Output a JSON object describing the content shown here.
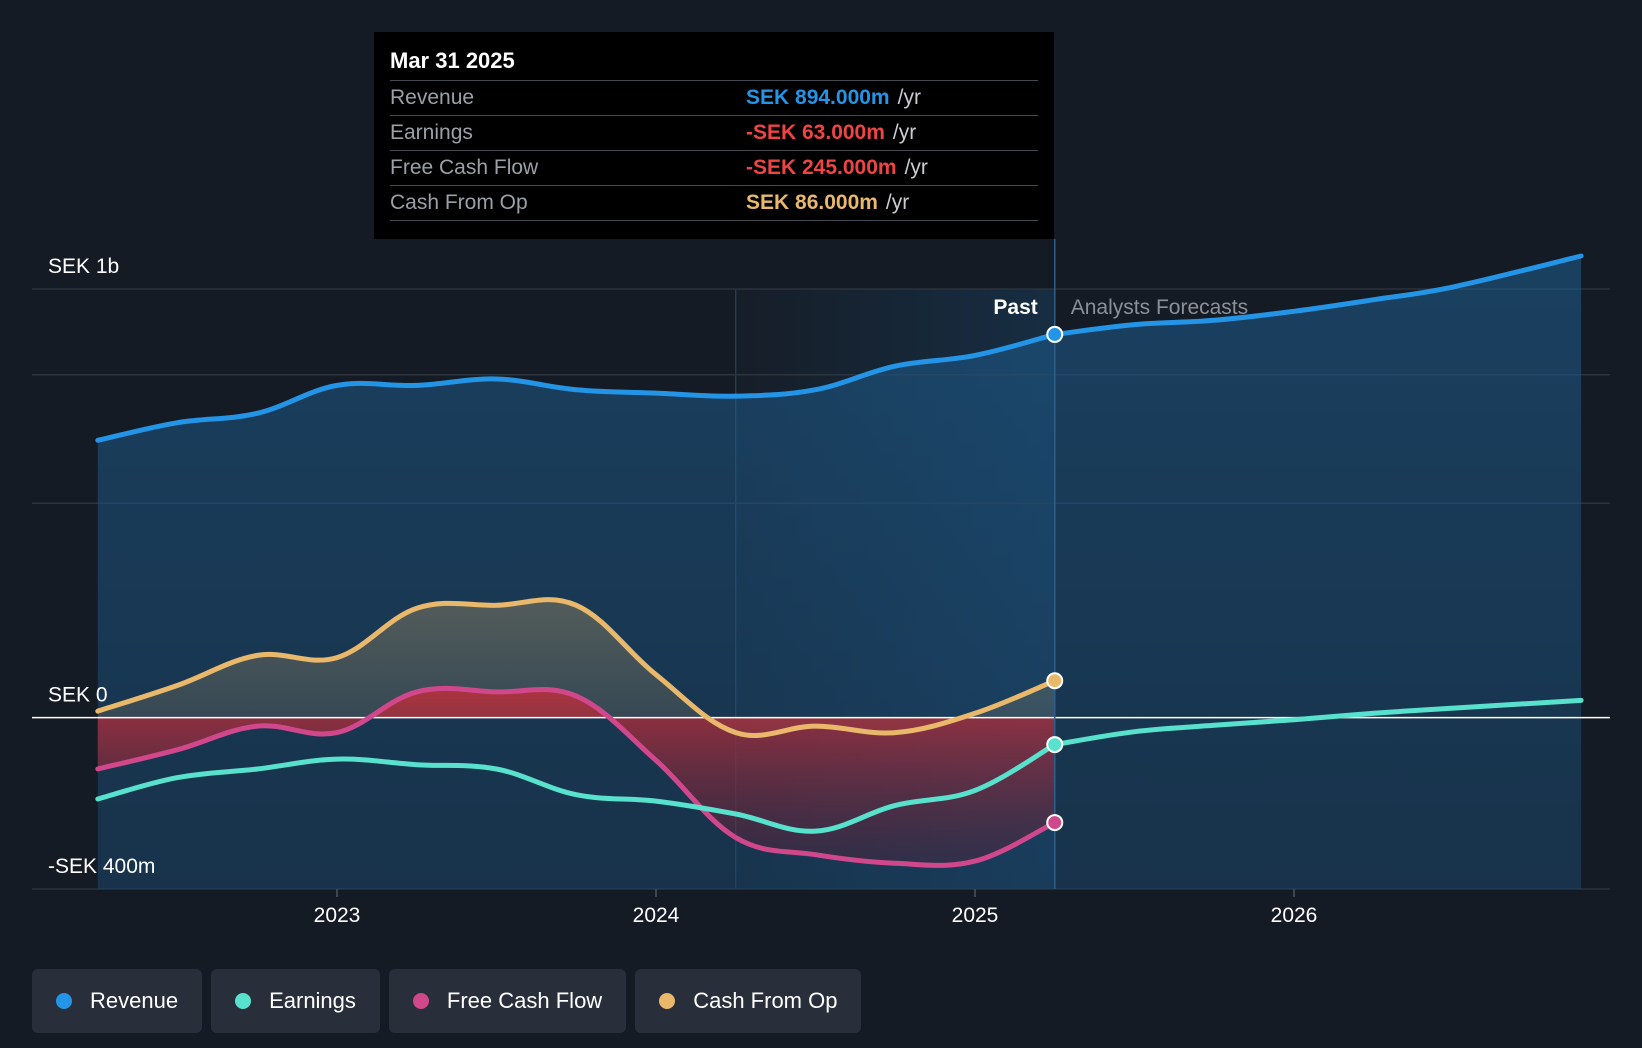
{
  "chart_data": {
    "type": "line",
    "y_axis": {
      "unit": "SEK m",
      "ylim": [
        -400,
        1000
      ],
      "tick_labels": [
        "SEK 1b",
        "SEK 0",
        "-SEK 400m"
      ],
      "tick_values": [
        1000,
        0,
        -400
      ]
    },
    "x_axis": {
      "range": [
        2022.25,
        2026.9
      ],
      "tick_labels": [
        "2023",
        "2024",
        "2025",
        "2026"
      ],
      "tick_values": [
        2023,
        2024,
        2025,
        2026
      ]
    },
    "regions": {
      "past_label": "Past",
      "forecast_label": "Analysts Forecasts",
      "past_end": 2025.25,
      "highlight_start": 2024.25
    },
    "series": [
      {
        "name": "Revenue",
        "key": "revenue",
        "color": "#2394e6",
        "points": [
          [
            2022.25,
            647
          ],
          [
            2022.5,
            688
          ],
          [
            2022.75,
            710
          ],
          [
            2023.0,
            775
          ],
          [
            2023.25,
            775
          ],
          [
            2023.5,
            790
          ],
          [
            2023.75,
            765
          ],
          [
            2024.0,
            757
          ],
          [
            2024.25,
            750
          ],
          [
            2024.5,
            765
          ],
          [
            2024.75,
            820
          ],
          [
            2025.0,
            845
          ],
          [
            2025.25,
            894
          ]
        ],
        "forecast": [
          [
            2025.25,
            894
          ],
          [
            2025.5,
            917
          ],
          [
            2025.75,
            927
          ],
          [
            2026.0,
            948
          ],
          [
            2026.25,
            975
          ],
          [
            2026.5,
            1005
          ],
          [
            2026.9,
            1077
          ]
        ]
      },
      {
        "name": "Earnings",
        "key": "earnings",
        "color": "#58e1cc",
        "points": [
          [
            2022.25,
            -190
          ],
          [
            2022.5,
            -140
          ],
          [
            2022.75,
            -120
          ],
          [
            2023.0,
            -97
          ],
          [
            2023.25,
            -110
          ],
          [
            2023.5,
            -120
          ],
          [
            2023.75,
            -180
          ],
          [
            2024.0,
            -195
          ],
          [
            2024.25,
            -225
          ],
          [
            2024.5,
            -265
          ],
          [
            2024.75,
            -205
          ],
          [
            2025.0,
            -170
          ],
          [
            2025.25,
            -63
          ]
        ],
        "forecast": [
          [
            2025.25,
            -63
          ],
          [
            2025.5,
            -33
          ],
          [
            2025.75,
            -18
          ],
          [
            2026.0,
            -5
          ],
          [
            2026.25,
            10
          ],
          [
            2026.5,
            22
          ],
          [
            2026.9,
            40
          ]
        ]
      },
      {
        "name": "Free Cash Flow",
        "key": "fcf",
        "color": "#d0478c",
        "points": [
          [
            2022.25,
            -120
          ],
          [
            2022.5,
            -75
          ],
          [
            2022.75,
            -20
          ],
          [
            2023.0,
            -35
          ],
          [
            2023.25,
            60
          ],
          [
            2023.5,
            60
          ],
          [
            2023.75,
            50
          ],
          [
            2024.0,
            -100
          ],
          [
            2024.25,
            -280
          ],
          [
            2024.5,
            -320
          ],
          [
            2024.75,
            -340
          ],
          [
            2025.0,
            -335
          ],
          [
            2025.25,
            -245
          ]
        ],
        "forecast": []
      },
      {
        "name": "Cash From Op",
        "key": "cfo",
        "color": "#e9b86a",
        "points": [
          [
            2022.25,
            15
          ],
          [
            2022.5,
            75
          ],
          [
            2022.75,
            145
          ],
          [
            2023.0,
            140
          ],
          [
            2023.25,
            255
          ],
          [
            2023.5,
            262
          ],
          [
            2023.75,
            262
          ],
          [
            2024.0,
            100
          ],
          [
            2024.25,
            -35
          ],
          [
            2024.5,
            -20
          ],
          [
            2024.75,
            -35
          ],
          [
            2025.0,
            10
          ],
          [
            2025.25,
            86
          ]
        ],
        "forecast": []
      }
    ]
  },
  "tooltip": {
    "date": "Mar 31 2025",
    "rows": [
      {
        "label": "Revenue",
        "value": "SEK 894.000m",
        "unit": "/yr",
        "color": "#2394e6"
      },
      {
        "label": "Earnings",
        "value": "-SEK 63.000m",
        "unit": "/yr",
        "color": "#ef4444"
      },
      {
        "label": "Free Cash Flow",
        "value": "-SEK 245.000m",
        "unit": "/yr",
        "color": "#ef4444"
      },
      {
        "label": "Cash From Op",
        "value": "SEK 86.000m",
        "unit": "/yr",
        "color": "#e9b86a"
      }
    ]
  },
  "legend": [
    {
      "label": "Revenue",
      "color": "#2394e6"
    },
    {
      "label": "Earnings",
      "color": "#58e1cc"
    },
    {
      "label": "Free Cash Flow",
      "color": "#d0478c"
    },
    {
      "label": "Cash From Op",
      "color": "#e9b86a"
    }
  ]
}
